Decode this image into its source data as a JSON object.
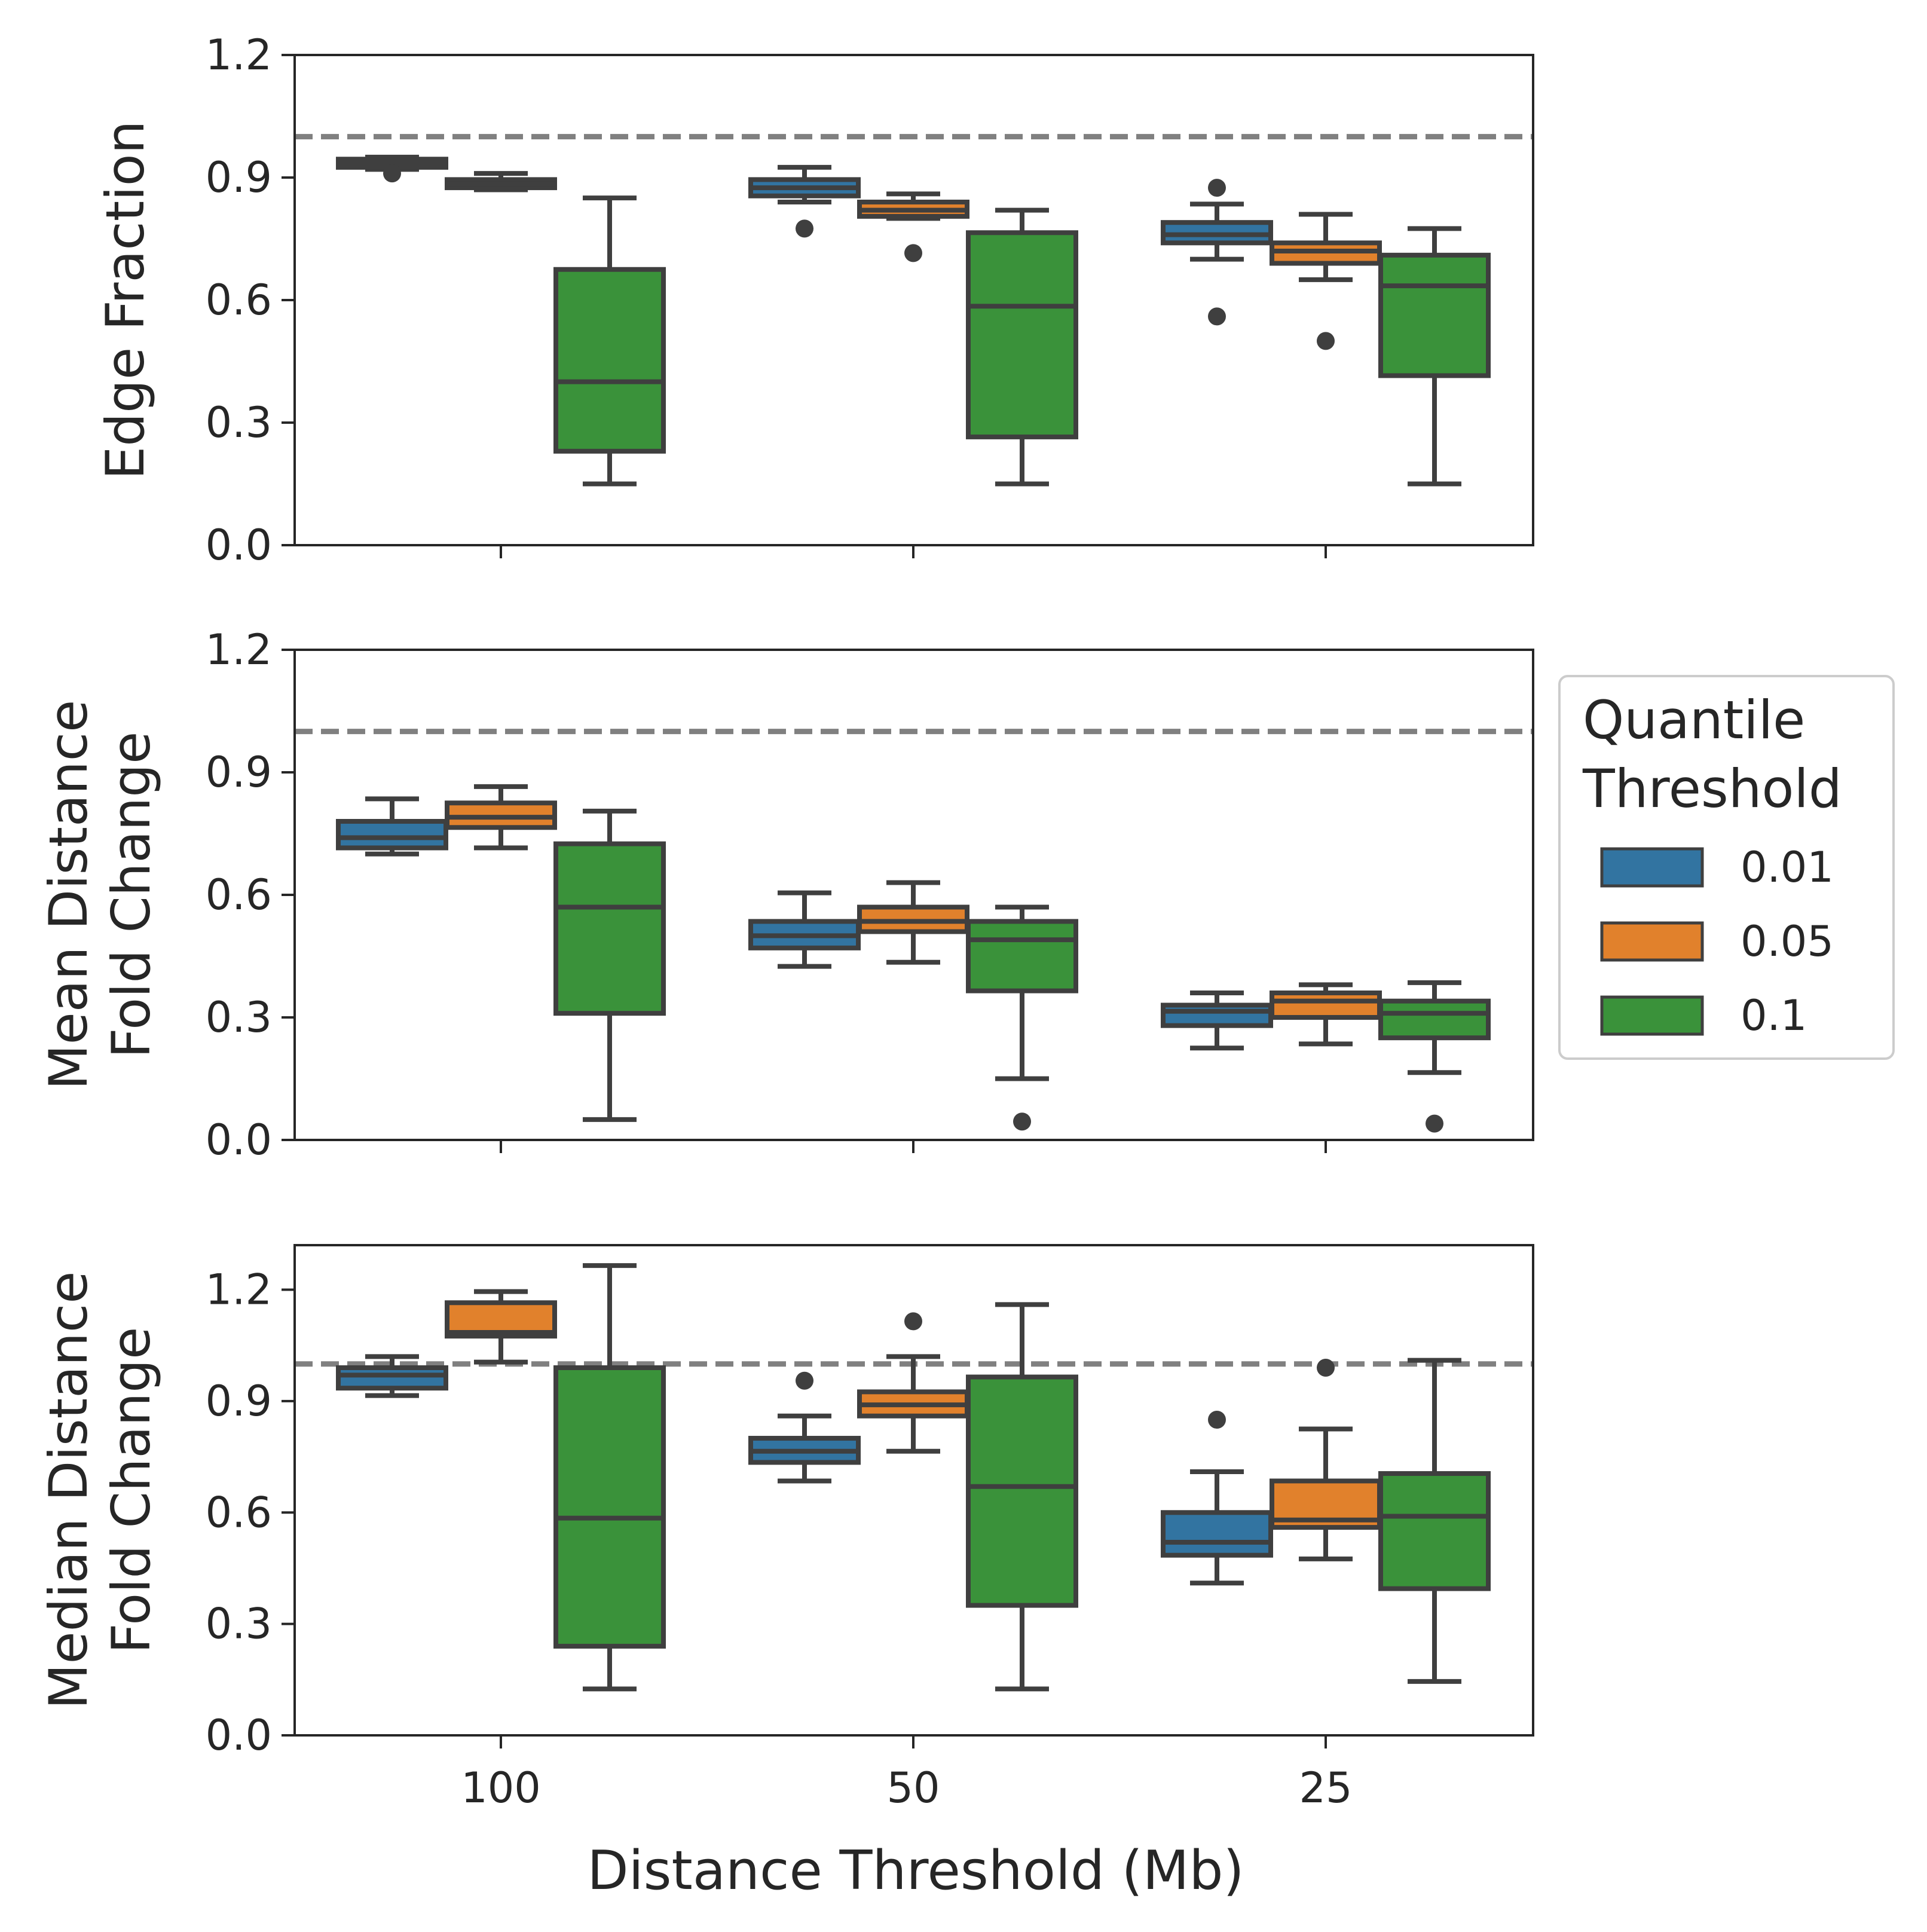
{
  "figure": {
    "xlabel": "Distance Threshold (Mb)",
    "legend": {
      "title_line1": "Quantile",
      "title_line2": "Threshold",
      "placement": "right",
      "entries": [
        {
          "label": "0.01",
          "color": "#3274a1"
        },
        {
          "label": "0.05",
          "color": "#e1812c"
        },
        {
          "label": "0.1",
          "color": "#3a923a"
        }
      ]
    },
    "reference_line": {
      "y": 1.0,
      "style": "dashed",
      "color": "#808080"
    }
  },
  "chart_data": [
    {
      "type": "box",
      "ylabel_lines": [
        "Edge Fraction"
      ],
      "ylim": [
        0.0,
        1.2
      ],
      "yticks": [
        "0.0",
        "0.3",
        "0.6",
        "0.9",
        "1.2"
      ],
      "categories": [
        "100",
        "50",
        "25"
      ],
      "show_xticklabels": false,
      "series": [
        {
          "name": "0.01",
          "boxes": [
            {
              "whislo": 0.92,
              "q1": 0.925,
              "med": 0.935,
              "q3": 0.945,
              "whishi": 0.95,
              "fliers": [
                0.91
              ]
            },
            {
              "whislo": 0.84,
              "q1": 0.855,
              "med": 0.875,
              "q3": 0.895,
              "whishi": 0.925,
              "fliers": [
                0.775
              ]
            },
            {
              "whislo": 0.7,
              "q1": 0.74,
              "med": 0.76,
              "q3": 0.79,
              "whishi": 0.835,
              "fliers": [
                0.56,
                0.875
              ]
            }
          ]
        },
        {
          "name": "0.05",
          "boxes": [
            {
              "whislo": 0.87,
              "q1": 0.875,
              "med": 0.885,
              "q3": 0.895,
              "whishi": 0.91,
              "fliers": []
            },
            {
              "whislo": 0.8,
              "q1": 0.805,
              "med": 0.82,
              "q3": 0.84,
              "whishi": 0.86,
              "fliers": [
                0.715
              ]
            },
            {
              "whislo": 0.65,
              "q1": 0.69,
              "med": 0.72,
              "q3": 0.74,
              "whishi": 0.81,
              "fliers": [
                0.5
              ]
            }
          ]
        },
        {
          "name": "0.1",
          "boxes": [
            {
              "whislo": 0.15,
              "q1": 0.23,
              "med": 0.4,
              "q3": 0.675,
              "whishi": 0.85,
              "fliers": []
            },
            {
              "whislo": 0.15,
              "q1": 0.265,
              "med": 0.585,
              "q3": 0.765,
              "whishi": 0.82,
              "fliers": []
            },
            {
              "whislo": 0.15,
              "q1": 0.415,
              "med": 0.635,
              "q3": 0.71,
              "whishi": 0.775,
              "fliers": []
            }
          ]
        }
      ]
    },
    {
      "type": "box",
      "ylabel_lines": [
        "Mean Distance",
        "Fold Change"
      ],
      "ylim": [
        0.0,
        1.2
      ],
      "yticks": [
        "0.0",
        "0.3",
        "0.6",
        "0.9",
        "1.2"
      ],
      "categories": [
        "100",
        "50",
        "25"
      ],
      "show_xticklabels": false,
      "series": [
        {
          "name": "0.01",
          "boxes": [
            {
              "whislo": 0.7,
              "q1": 0.715,
              "med": 0.74,
              "q3": 0.78,
              "whishi": 0.835,
              "fliers": []
            },
            {
              "whislo": 0.425,
              "q1": 0.47,
              "med": 0.5,
              "q3": 0.535,
              "whishi": 0.605,
              "fliers": []
            },
            {
              "whislo": 0.225,
              "q1": 0.28,
              "med": 0.315,
              "q3": 0.33,
              "whishi": 0.36,
              "fliers": []
            }
          ]
        },
        {
          "name": "0.05",
          "boxes": [
            {
              "whislo": 0.715,
              "q1": 0.765,
              "med": 0.79,
              "q3": 0.825,
              "whishi": 0.865,
              "fliers": []
            },
            {
              "whislo": 0.435,
              "q1": 0.51,
              "med": 0.535,
              "q3": 0.57,
              "whishi": 0.63,
              "fliers": []
            },
            {
              "whislo": 0.235,
              "q1": 0.3,
              "med": 0.34,
              "q3": 0.36,
              "whishi": 0.38,
              "fliers": []
            }
          ]
        },
        {
          "name": "0.1",
          "boxes": [
            {
              "whislo": 0.05,
              "q1": 0.31,
              "med": 0.57,
              "q3": 0.725,
              "whishi": 0.805,
              "fliers": []
            },
            {
              "whislo": 0.15,
              "q1": 0.365,
              "med": 0.49,
              "q3": 0.535,
              "whishi": 0.57,
              "fliers": [
                0.045
              ]
            },
            {
              "whislo": 0.165,
              "q1": 0.25,
              "med": 0.31,
              "q3": 0.34,
              "whishi": 0.385,
              "fliers": [
                0.04
              ]
            }
          ]
        }
      ]
    },
    {
      "type": "box",
      "ylabel_lines": [
        "Median Distance",
        "Fold Change"
      ],
      "ylim": [
        0.0,
        1.32
      ],
      "yticks": [
        "0.0",
        "0.3",
        "0.6",
        "0.9",
        "1.2"
      ],
      "categories": [
        "100",
        "50",
        "25"
      ],
      "show_xticklabels": true,
      "series": [
        {
          "name": "0.01",
          "boxes": [
            {
              "whislo": 0.915,
              "q1": 0.935,
              "med": 0.97,
              "q3": 0.99,
              "whishi": 1.02,
              "fliers": []
            },
            {
              "whislo": 0.685,
              "q1": 0.735,
              "med": 0.765,
              "q3": 0.8,
              "whishi": 0.86,
              "fliers": [
                0.955
              ]
            },
            {
              "whislo": 0.41,
              "q1": 0.485,
              "med": 0.52,
              "q3": 0.6,
              "whishi": 0.71,
              "fliers": [
                0.85
              ]
            }
          ]
        },
        {
          "name": "0.05",
          "boxes": [
            {
              "whislo": 1.005,
              "q1": 1.075,
              "med": 1.085,
              "q3": 1.165,
              "whishi": 1.195,
              "fliers": []
            },
            {
              "whislo": 0.765,
              "q1": 0.86,
              "med": 0.89,
              "q3": 0.925,
              "whishi": 1.02,
              "fliers": [
                1.115
              ]
            },
            {
              "whislo": 0.475,
              "q1": 0.56,
              "med": 0.58,
              "q3": 0.685,
              "whishi": 0.825,
              "fliers": [
                0.99
              ]
            }
          ]
        },
        {
          "name": "0.1",
          "boxes": [
            {
              "whislo": 0.125,
              "q1": 0.24,
              "med": 0.585,
              "q3": 0.99,
              "whishi": 1.265,
              "fliers": []
            },
            {
              "whislo": 0.125,
              "q1": 0.35,
              "med": 0.67,
              "q3": 0.965,
              "whishi": 1.16,
              "fliers": []
            },
            {
              "whislo": 0.145,
              "q1": 0.395,
              "med": 0.59,
              "q3": 0.705,
              "whishi": 1.01,
              "fliers": []
            }
          ]
        }
      ]
    }
  ]
}
